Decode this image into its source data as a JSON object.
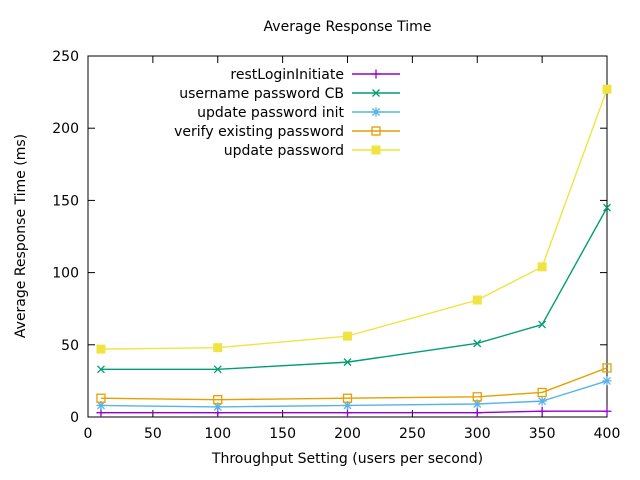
{
  "chart_data": {
    "type": "line",
    "title": "Average Response Time",
    "xlabel": "Throughput Setting (users per second)",
    "ylabel": "Average Response Time (ms)",
    "x": [
      10,
      100,
      200,
      300,
      350,
      400
    ],
    "xlim": [
      0,
      400
    ],
    "ylim": [
      0,
      250
    ],
    "x_ticks": [
      0,
      50,
      100,
      150,
      200,
      250,
      300,
      350,
      400
    ],
    "y_ticks": [
      0,
      50,
      100,
      150,
      200,
      250
    ],
    "grid": false,
    "legend_position": "top-left-inside",
    "frame_color": "#000000",
    "series": [
      {
        "name": "restLoginInitiate",
        "color": "#9400d3",
        "marker": "plus",
        "values": [
          3,
          3,
          3,
          3,
          4,
          4
        ]
      },
      {
        "name": "username password CB",
        "color": "#009e73",
        "marker": "cross",
        "values": [
          33,
          33,
          38,
          51,
          64,
          145
        ]
      },
      {
        "name": "update password init",
        "color": "#56b4e9",
        "marker": "asterisk",
        "values": [
          8,
          7,
          8,
          9,
          11,
          25
        ]
      },
      {
        "name": "verify existing password",
        "color": "#e69f00",
        "marker": "open-square",
        "values": [
          13,
          12,
          13,
          14,
          17,
          34
        ]
      },
      {
        "name": "update password",
        "color": "#f0e442",
        "marker": "filled-square",
        "values": [
          47,
          48,
          56,
          81,
          104,
          227
        ]
      }
    ]
  }
}
